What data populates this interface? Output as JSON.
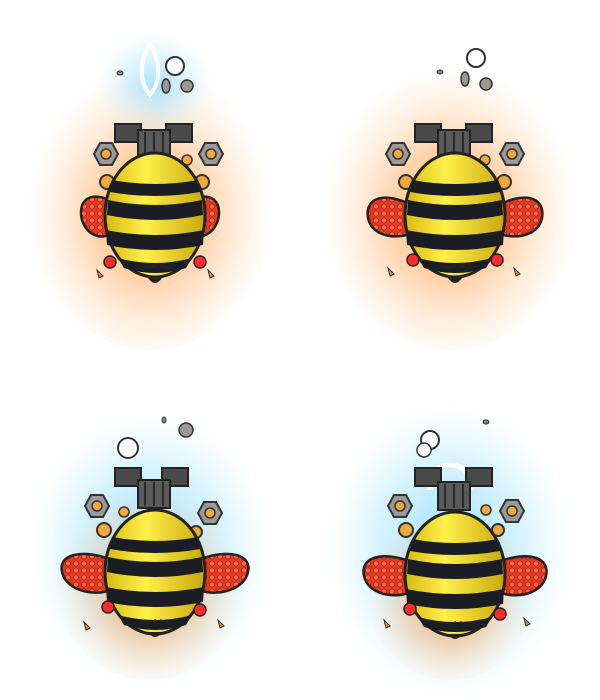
{
  "sprite_sheet": {
    "frames": [
      {
        "id": "frame-1",
        "aura": "orange-with-cyan-top",
        "wings": "folded",
        "antenna": "cyan-teardrop"
      },
      {
        "id": "frame-2",
        "aura": "orange",
        "wings": "spread",
        "antenna": "none"
      },
      {
        "id": "frame-3",
        "aura": "cyan-orange",
        "wings": "wide-spread",
        "antenna": "none"
      },
      {
        "id": "frame-4",
        "aura": "cyan-blue",
        "wings": "wide-spread",
        "antenna": "cyan-arc"
      }
    ],
    "colors": {
      "body_yellow": "#f6e21a",
      "stripe_black": "#1b1d24",
      "wing_red": "#e8412a",
      "cap_gray": "#4a4a4a",
      "glow_orange": "#ffb36a",
      "glow_cyan": "#6fd3ff",
      "nut_orange": "#f0a93a",
      "eye_red": "#ff2a2a"
    }
  }
}
